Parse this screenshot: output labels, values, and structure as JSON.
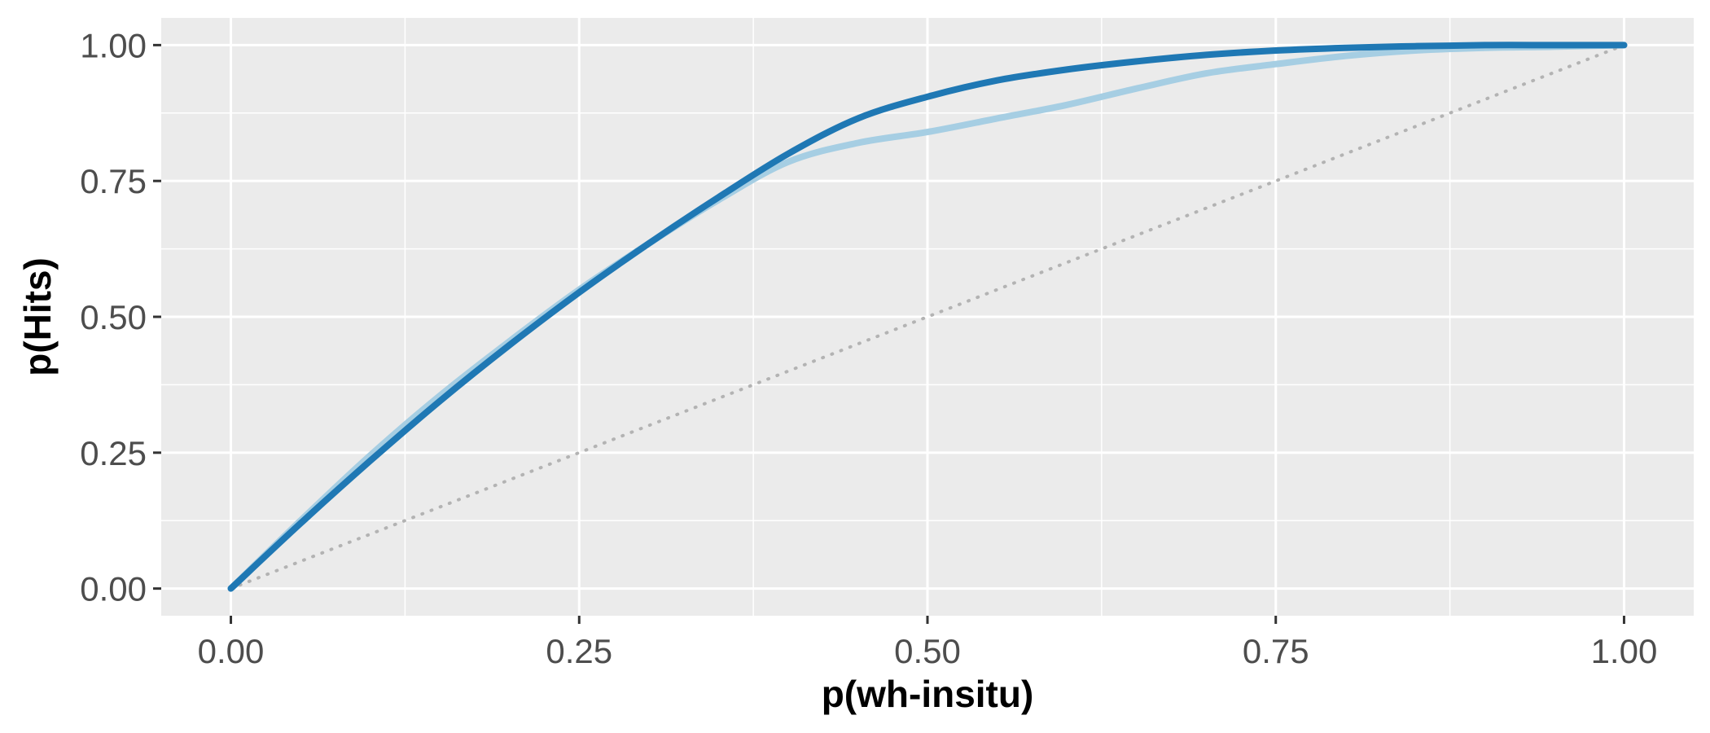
{
  "chart_data": {
    "type": "line",
    "title": "",
    "xlabel": "p(wh-insitu)",
    "ylabel": "p(Hits)",
    "xlim": [
      -0.05,
      1.05
    ],
    "ylim": [
      -0.05,
      1.05
    ],
    "x_ticks": [
      0,
      0.25,
      0.5,
      0.75,
      1
    ],
    "x_tick_labels": [
      "0.00",
      "0.25",
      "0.50",
      "0.75",
      "1.00"
    ],
    "y_ticks": [
      0,
      0.25,
      0.5,
      0.75,
      1
    ],
    "y_tick_labels": [
      "0.00",
      "0.25",
      "0.50",
      "0.75",
      "1.00"
    ],
    "grid": true,
    "legend": "none",
    "colors": {
      "panel_bg": "#ebebeb",
      "grid": "#ffffff",
      "series_dark": "#1f78b4",
      "series_light": "#a6cee3",
      "reference": "#b3b3b3"
    },
    "series": [
      {
        "style": "light",
        "x": [
          0,
          0.05,
          0.1,
          0.15,
          0.2,
          0.25,
          0.3,
          0.35,
          0.4,
          0.45,
          0.5,
          0.55,
          0.6,
          0.65,
          0.7,
          0.75,
          0.8,
          0.85,
          0.9,
          0.95,
          1.0
        ],
        "y": [
          0,
          0.125,
          0.245,
          0.355,
          0.455,
          0.55,
          0.635,
          0.715,
          0.785,
          0.82,
          0.84,
          0.865,
          0.89,
          0.92,
          0.948,
          0.965,
          0.98,
          0.99,
          0.995,
          0.997,
          1.0
        ]
      },
      {
        "style": "dark",
        "x": [
          0,
          0.05,
          0.1,
          0.15,
          0.2,
          0.25,
          0.3,
          0.35,
          0.4,
          0.45,
          0.5,
          0.55,
          0.6,
          0.65,
          0.7,
          0.75,
          0.8,
          0.85,
          0.9,
          0.95,
          1.0
        ],
        "y": [
          0,
          0.12,
          0.235,
          0.345,
          0.448,
          0.545,
          0.635,
          0.72,
          0.8,
          0.865,
          0.905,
          0.935,
          0.955,
          0.97,
          0.982,
          0.99,
          0.995,
          0.998,
          1.0,
          1.0,
          1.0
        ]
      },
      {
        "style": "reference",
        "x": [
          0,
          1
        ],
        "y": [
          0,
          1
        ]
      }
    ]
  }
}
